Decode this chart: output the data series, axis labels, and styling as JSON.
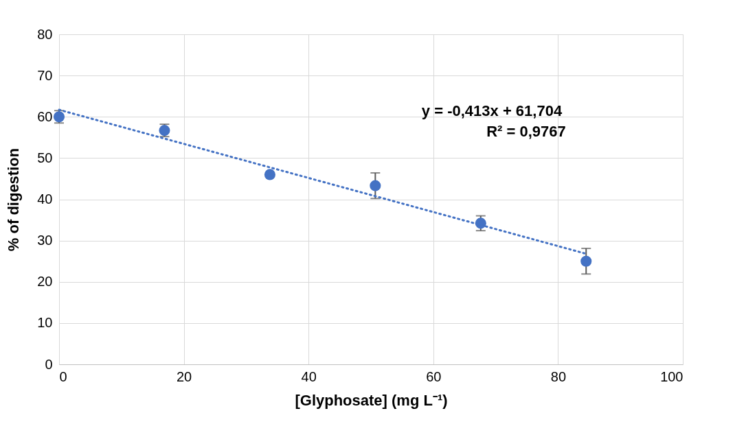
{
  "chart_data": {
    "type": "scatter",
    "xlabel": "[Glyphosate] (mg L⁻¹)",
    "ylabel": "% of digestion",
    "xlim": [
      0,
      100
    ],
    "xticks": [
      0,
      20,
      40,
      60,
      80,
      100
    ],
    "ylim": [
      0,
      80
    ],
    "yticks": [
      0,
      10,
      20,
      30,
      40,
      50,
      60,
      70,
      80
    ],
    "grid": true,
    "legend": false,
    "annotations": [
      "y = -0,413x + 61,704",
      "R² = 0,9767"
    ],
    "series": [
      {
        "marker": "circle",
        "color": "#4472c4",
        "x": [
          0,
          16.9,
          33.8,
          50.7,
          67.6,
          84.5
        ],
        "values": [
          60,
          56.7,
          46,
          43.3,
          34.2,
          25
        ],
        "errors": [
          1.5,
          1.5,
          null,
          3.1,
          1.8,
          3.1
        ]
      },
      {
        "type": "line",
        "color": "#4472c4",
        "line_style": "dotted",
        "x": [
          0,
          84.5
        ],
        "values": [
          61.7,
          26.8
        ]
      }
    ]
  }
}
